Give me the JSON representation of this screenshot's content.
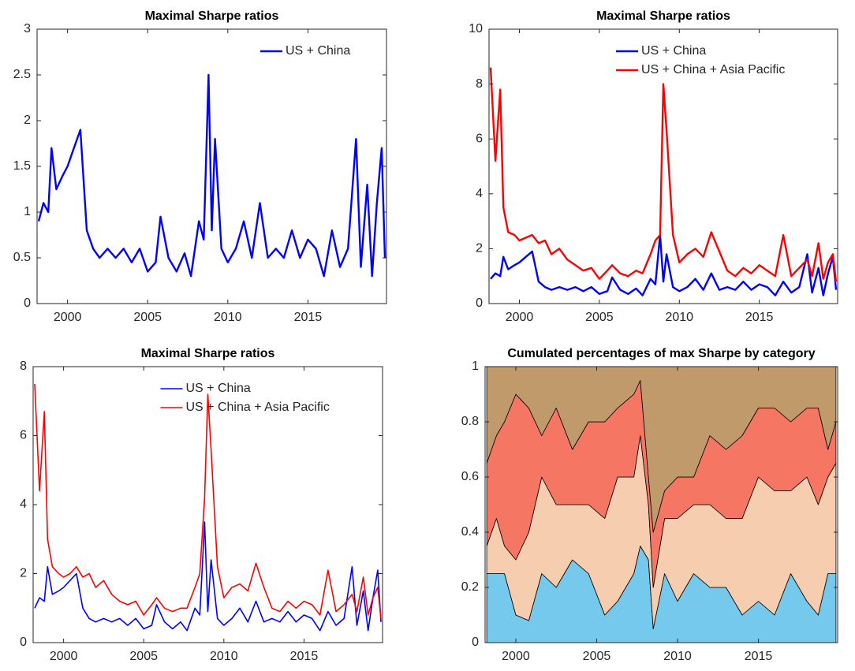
{
  "chart_data": [
    {
      "type": "line",
      "title": "Maximal Sharpe ratios",
      "x": [
        1998.2,
        1998.5,
        1998.8,
        1999.0,
        1999.3,
        1999.7,
        2000.0,
        2000.4,
        2000.8,
        2001.2,
        2001.6,
        2002.0,
        2002.5,
        2003.0,
        2003.5,
        2004.0,
        2004.5,
        2005.0,
        2005.5,
        2005.8,
        2006.3,
        2006.8,
        2007.3,
        2007.7,
        2008.2,
        2008.5,
        2008.8,
        2009.0,
        2009.2,
        2009.6,
        2010.0,
        2010.5,
        2011.0,
        2011.5,
        2012.0,
        2012.5,
        2013.0,
        2013.5,
        2014.0,
        2014.5,
        2015.0,
        2015.5,
        2016.0,
        2016.5,
        2017.0,
        2017.5,
        2018.0,
        2018.3,
        2018.7,
        2019.0,
        2019.3,
        2019.6,
        2019.8
      ],
      "series": [
        {
          "name": "US + China",
          "color": "#0000ff",
          "values": [
            0.9,
            1.1,
            1.0,
            1.7,
            1.25,
            1.4,
            1.5,
            1.7,
            1.9,
            0.8,
            0.6,
            0.5,
            0.6,
            0.5,
            0.6,
            0.45,
            0.6,
            0.35,
            0.45,
            0.95,
            0.5,
            0.35,
            0.55,
            0.3,
            0.9,
            0.7,
            2.5,
            0.8,
            1.8,
            0.6,
            0.45,
            0.6,
            0.9,
            0.5,
            1.1,
            0.5,
            0.6,
            0.5,
            0.8,
            0.5,
            0.7,
            0.6,
            0.3,
            0.8,
            0.4,
            0.6,
            1.8,
            0.4,
            1.3,
            0.3,
            1.1,
            1.7,
            0.5
          ]
        }
      ],
      "xlim": [
        1998.1,
        2019.9
      ],
      "xticks": [
        2000,
        2005,
        2010,
        2015
      ],
      "ylim": [
        0,
        3
      ],
      "yticks": [
        0,
        0.5,
        1,
        1.5,
        2,
        2.5,
        3
      ],
      "legend": "upper right"
    },
    {
      "type": "line",
      "title": "Maximal Sharpe ratios",
      "x": [
        1998.2,
        1998.5,
        1998.8,
        1999.0,
        1999.3,
        1999.7,
        2000.0,
        2000.4,
        2000.8,
        2001.2,
        2001.6,
        2002.0,
        2002.5,
        2003.0,
        2003.5,
        2004.0,
        2004.5,
        2005.0,
        2005.5,
        2005.8,
        2006.3,
        2006.8,
        2007.3,
        2007.7,
        2008.2,
        2008.5,
        2008.8,
        2009.0,
        2009.2,
        2009.6,
        2010.0,
        2010.5,
        2011.0,
        2011.5,
        2012.0,
        2012.5,
        2013.0,
        2013.5,
        2014.0,
        2014.5,
        2015.0,
        2015.5,
        2016.0,
        2016.5,
        2017.0,
        2017.5,
        2018.0,
        2018.3,
        2018.7,
        2019.0,
        2019.3,
        2019.6,
        2019.8
      ],
      "series": [
        {
          "name": "US + China",
          "color": "#0000ff",
          "values": [
            0.9,
            1.1,
            1.0,
            1.7,
            1.25,
            1.4,
            1.5,
            1.7,
            1.9,
            0.8,
            0.6,
            0.5,
            0.6,
            0.5,
            0.6,
            0.45,
            0.6,
            0.35,
            0.45,
            0.95,
            0.5,
            0.35,
            0.55,
            0.3,
            0.9,
            0.7,
            2.5,
            0.8,
            1.8,
            0.6,
            0.45,
            0.6,
            0.9,
            0.5,
            1.1,
            0.5,
            0.6,
            0.5,
            0.8,
            0.5,
            0.7,
            0.6,
            0.3,
            0.8,
            0.4,
            0.6,
            1.8,
            0.4,
            1.3,
            0.3,
            1.1,
            1.7,
            0.5
          ]
        },
        {
          "name": "US + China + Asia Pacific",
          "color": "#ff0000",
          "values": [
            8.6,
            5.2,
            7.8,
            3.5,
            2.6,
            2.5,
            2.3,
            2.4,
            2.5,
            2.2,
            2.3,
            1.8,
            2.0,
            1.6,
            1.4,
            1.2,
            1.3,
            0.9,
            1.2,
            1.4,
            1.1,
            1.0,
            1.2,
            1.1,
            1.8,
            2.3,
            2.5,
            8.0,
            6.3,
            2.5,
            1.5,
            1.8,
            2.0,
            1.7,
            2.6,
            1.9,
            1.2,
            1.0,
            1.3,
            1.1,
            1.4,
            1.2,
            1.0,
            2.5,
            1.0,
            1.3,
            1.6,
            1.0,
            2.2,
            0.9,
            1.5,
            1.8,
            0.8
          ]
        }
      ],
      "xlim": [
        1998.1,
        2019.9
      ],
      "xticks": [
        2000,
        2005,
        2010,
        2015
      ],
      "ylim": [
        0,
        10
      ],
      "yticks": [
        0,
        2,
        4,
        6,
        8,
        10
      ],
      "legend": "upper center"
    },
    {
      "type": "line",
      "title": "Maximal Sharpe ratios",
      "x": [
        1998.2,
        1998.5,
        1998.8,
        1999.0,
        1999.3,
        1999.7,
        2000.0,
        2000.4,
        2000.8,
        2001.2,
        2001.6,
        2002.0,
        2002.5,
        2003.0,
        2003.5,
        2004.0,
        2004.5,
        2005.0,
        2005.5,
        2005.8,
        2006.3,
        2006.8,
        2007.3,
        2007.7,
        2008.2,
        2008.5,
        2008.8,
        2009.0,
        2009.2,
        2009.6,
        2010.0,
        2010.5,
        2011.0,
        2011.5,
        2012.0,
        2012.5,
        2013.0,
        2013.5,
        2014.0,
        2014.5,
        2015.0,
        2015.5,
        2016.0,
        2016.5,
        2017.0,
        2017.5,
        2018.0,
        2018.3,
        2018.7,
        2019.0,
        2019.3,
        2019.6,
        2019.8
      ],
      "series": [
        {
          "name": "US + China",
          "color": "#0000ff",
          "values": [
            1.0,
            1.3,
            1.2,
            2.2,
            1.4,
            1.5,
            1.6,
            1.8,
            2.0,
            1.0,
            0.7,
            0.6,
            0.7,
            0.6,
            0.7,
            0.5,
            0.7,
            0.4,
            0.5,
            1.1,
            0.6,
            0.4,
            0.6,
            0.35,
            1.0,
            0.8,
            3.5,
            0.9,
            2.4,
            0.7,
            0.5,
            0.7,
            1.0,
            0.6,
            1.2,
            0.6,
            0.7,
            0.6,
            0.9,
            0.6,
            0.8,
            0.7,
            0.35,
            0.9,
            0.5,
            0.7,
            2.2,
            0.5,
            1.5,
            0.35,
            1.3,
            2.1,
            0.6
          ]
        },
        {
          "name": "US + China + Asia Pacific",
          "color": "#ff0000",
          "values": [
            7.5,
            4.4,
            6.7,
            3.0,
            2.2,
            2.0,
            1.9,
            2.0,
            2.2,
            1.9,
            2.0,
            1.6,
            1.8,
            1.4,
            1.2,
            1.1,
            1.2,
            0.8,
            1.1,
            1.3,
            1.0,
            0.9,
            1.0,
            1.0,
            1.6,
            2.0,
            4.2,
            7.2,
            5.6,
            2.2,
            1.3,
            1.6,
            1.7,
            1.5,
            2.3,
            1.6,
            1.0,
            0.9,
            1.2,
            1.0,
            1.2,
            1.1,
            0.8,
            2.1,
            0.9,
            1.1,
            1.4,
            0.9,
            1.9,
            0.8,
            1.3,
            1.6,
            0.7
          ]
        }
      ],
      "xlim": [
        1998.1,
        2019.9
      ],
      "xticks": [
        2000,
        2005,
        2010,
        2015
      ],
      "ylim": [
        0,
        8
      ],
      "yticks": [
        0,
        2,
        4,
        6,
        8
      ],
      "legend": "upper center"
    },
    {
      "type": "area",
      "title": "Cumulated percentages of max Sharpe by category",
      "x": [
        1998.2,
        1998.8,
        1999.3,
        2000.0,
        2000.8,
        2001.6,
        2002.5,
        2003.5,
        2004.5,
        2005.5,
        2006.3,
        2007.3,
        2007.7,
        2008.2,
        2008.5,
        2009.2,
        2010.0,
        2011.0,
        2012.0,
        2013.0,
        2014.0,
        2015.0,
        2016.0,
        2017.0,
        2018.0,
        2018.7,
        2019.3,
        2019.8
      ],
      "series": [
        {
          "color": "#74c9ec",
          "values": [
            0.25,
            0.25,
            0.25,
            0.1,
            0.08,
            0.25,
            0.2,
            0.3,
            0.25,
            0.1,
            0.15,
            0.25,
            0.35,
            0.3,
            0.05,
            0.25,
            0.15,
            0.25,
            0.2,
            0.2,
            0.1,
            0.15,
            0.1,
            0.25,
            0.15,
            0.1,
            0.25,
            0.25
          ]
        },
        {
          "color": "#f7cdb0",
          "values": [
            0.1,
            0.2,
            0.1,
            0.2,
            0.32,
            0.35,
            0.3,
            0.2,
            0.25,
            0.35,
            0.45,
            0.35,
            0.4,
            0.2,
            0.15,
            0.2,
            0.3,
            0.25,
            0.3,
            0.25,
            0.35,
            0.45,
            0.45,
            0.3,
            0.45,
            0.4,
            0.35,
            0.4
          ]
        },
        {
          "color": "#f57663",
          "values": [
            0.3,
            0.3,
            0.45,
            0.6,
            0.45,
            0.15,
            0.35,
            0.2,
            0.3,
            0.35,
            0.25,
            0.3,
            0.2,
            0.1,
            0.2,
            0.1,
            0.15,
            0.1,
            0.25,
            0.25,
            0.3,
            0.25,
            0.3,
            0.25,
            0.25,
            0.35,
            0.1,
            0.15
          ]
        },
        {
          "color": "#c19a6b",
          "values": [
            0.35,
            0.25,
            0.2,
            0.1,
            0.15,
            0.25,
            0.15,
            0.3,
            0.2,
            0.2,
            0.15,
            0.1,
            0.05,
            0.4,
            0.6,
            0.45,
            0.4,
            0.4,
            0.25,
            0.3,
            0.25,
            0.15,
            0.15,
            0.2,
            0.15,
            0.15,
            0.3,
            0.2
          ]
        }
      ],
      "xlim": [
        1998.1,
        2019.9
      ],
      "xticks": [
        2000,
        2005,
        2010,
        2015
      ],
      "ylim": [
        0,
        1
      ],
      "yticks": [
        0,
        0.2,
        0.4,
        0.6,
        0.8,
        1
      ]
    }
  ]
}
